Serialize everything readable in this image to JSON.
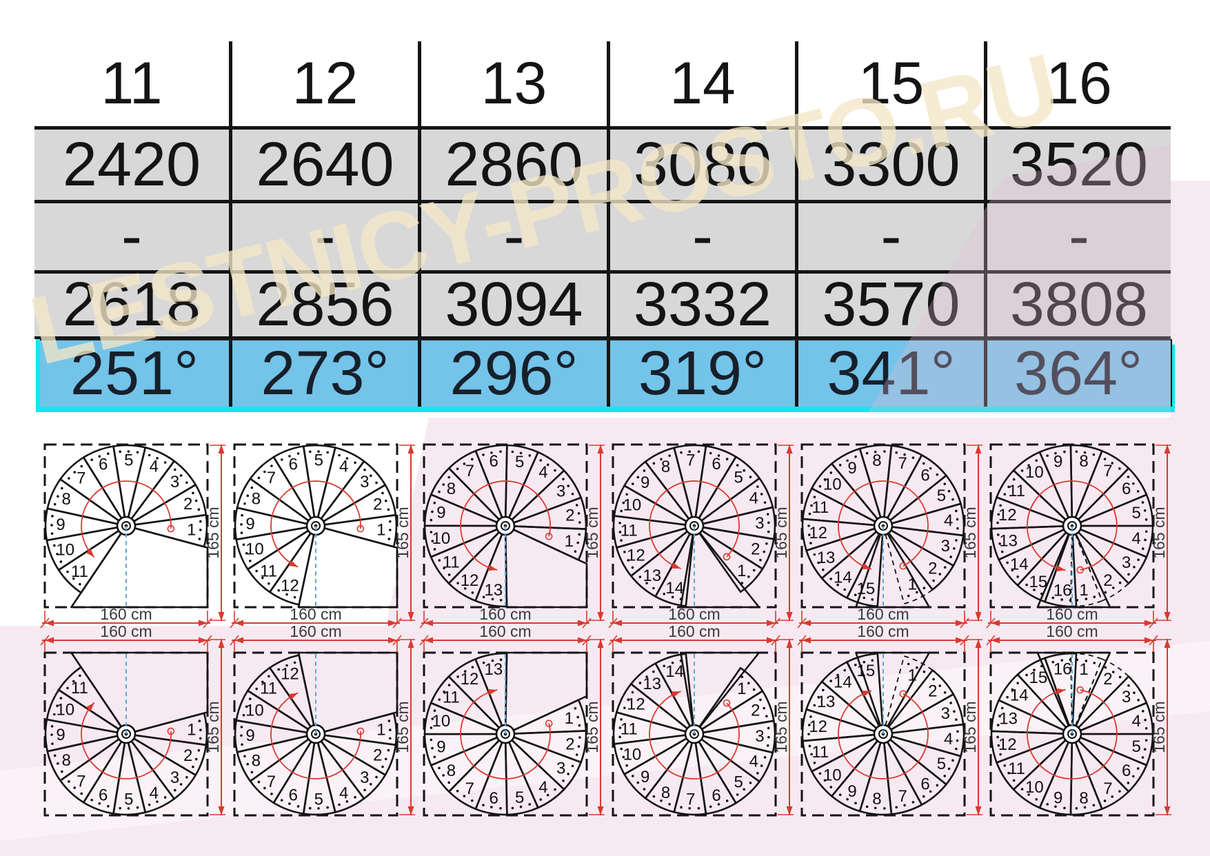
{
  "table": {
    "step_counts": [
      "11",
      "12",
      "13",
      "14",
      "15",
      "16"
    ],
    "height_min": [
      "2420",
      "2640",
      "2860",
      "3080",
      "3300",
      "3520"
    ],
    "separator": "-",
    "height_max": [
      "2618",
      "2856",
      "3094",
      "3332",
      "3570",
      "3808"
    ],
    "rotation": [
      "251°",
      "273°",
      "296°",
      "319°",
      "341°",
      "364°"
    ]
  },
  "diagrams": {
    "width_label": "160 cm",
    "height_label": "165 cm",
    "columns": [
      {
        "steps": 11,
        "rotation_deg": 251,
        "start_angle_deg": -15,
        "overlap_dashed_steps": 0
      },
      {
        "steps": 12,
        "rotation_deg": 273,
        "start_angle_deg": -15,
        "overlap_dashed_steps": 0
      },
      {
        "steps": 13,
        "rotation_deg": 296,
        "start_angle_deg": -25,
        "overlap_dashed_steps": 0
      },
      {
        "steps": 14,
        "rotation_deg": 319,
        "start_angle_deg": -55,
        "overlap_dashed_steps": 0
      },
      {
        "steps": 15,
        "rotation_deg": 341,
        "start_angle_deg": -75,
        "overlap_dashed_steps": 1
      },
      {
        "steps": 16,
        "rotation_deg": 364,
        "start_angle_deg": -91,
        "overlap_dashed_steps": 2
      }
    ],
    "rows": [
      {
        "direction": "left-turn"
      },
      {
        "direction": "right-turn-mirrored"
      }
    ]
  },
  "watermark": {
    "text": "LESTNICY-PROSTO.RU"
  },
  "colors": {
    "table_grey": "#d8d8d8",
    "row_blue": "#74c3e9",
    "accent_cyan": "#12e7f2",
    "drawing_red": "#d93a30",
    "drawing_blue": "#5aa7e0",
    "line_black": "#141414",
    "dim_text": "#3a3a3a",
    "bg_pink": "#f7e9f1",
    "watermark_beige": "rgba(242,231,198,0.78)"
  }
}
